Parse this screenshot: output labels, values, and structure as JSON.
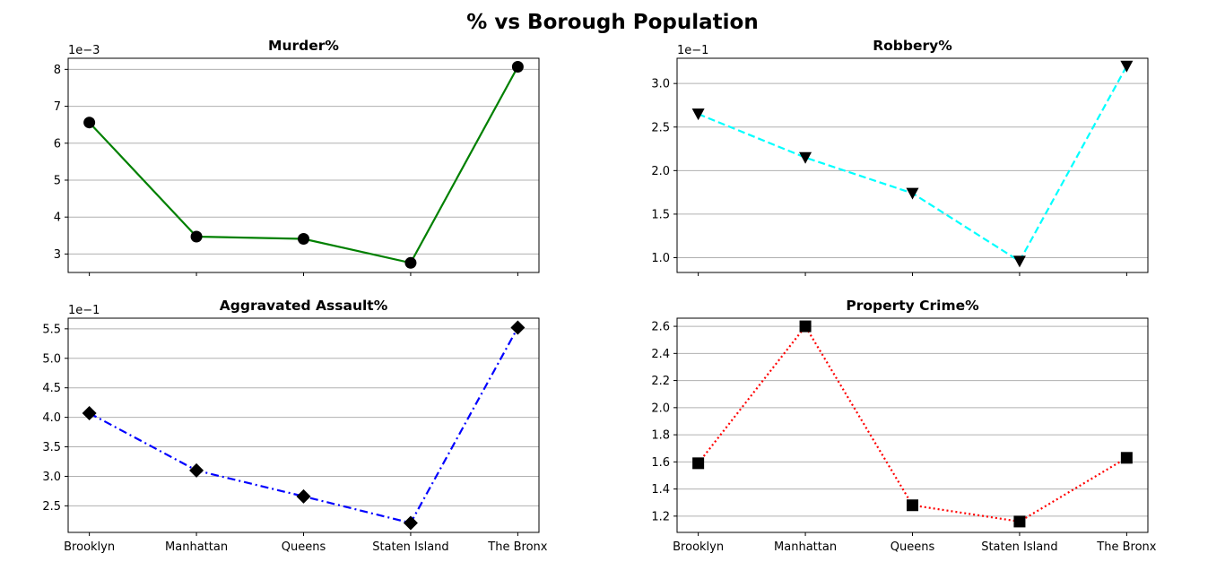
{
  "figure": {
    "title": "% vs Borough Population"
  },
  "chart_data": [
    {
      "type": "line",
      "title": "Murder%",
      "scale_label": "1e−3",
      "categories": [
        "Brooklyn",
        "Manhattan",
        "Queens",
        "Staten Island",
        "The Bronx"
      ],
      "values": [
        6.56,
        3.47,
        3.41,
        2.76,
        8.07
      ],
      "ylim": [
        2.5,
        8.3
      ],
      "yticks": [
        3,
        4,
        5,
        6,
        7,
        8
      ],
      "ytick_decimals": 0,
      "show_xlabels": false,
      "grid": "y",
      "color": "#008000",
      "line_style": "solid",
      "marker": "circle"
    },
    {
      "type": "line",
      "title": "Robbery%",
      "scale_label": "1e−1",
      "categories": [
        "Brooklyn",
        "Manhattan",
        "Queens",
        "Staten Island",
        "The Bronx"
      ],
      "values": [
        2.65,
        2.15,
        1.74,
        0.96,
        3.2
      ],
      "ylim": [
        0.83,
        3.29
      ],
      "yticks": [
        1.0,
        1.5,
        2.0,
        2.5,
        3.0
      ],
      "ytick_decimals": 1,
      "show_xlabels": false,
      "grid": "y",
      "color": "#00ffff",
      "line_style": "dashed",
      "marker": "triangle-down"
    },
    {
      "type": "line",
      "title": "Aggravated Assault%",
      "scale_label": "1e−1",
      "categories": [
        "Brooklyn",
        "Manhattan",
        "Queens",
        "Staten Island",
        "The Bronx"
      ],
      "values": [
        4.07,
        3.1,
        2.66,
        2.21,
        5.52
      ],
      "ylim": [
        2.05,
        5.68
      ],
      "yticks": [
        2.5,
        3.0,
        3.5,
        4.0,
        4.5,
        5.0,
        5.5
      ],
      "ytick_decimals": 1,
      "show_xlabels": true,
      "grid": "y",
      "color": "#0000ff",
      "line_style": "dashdot",
      "marker": "diamond"
    },
    {
      "type": "line",
      "title": "Property Crime%",
      "scale_label": "",
      "categories": [
        "Brooklyn",
        "Manhattan",
        "Queens",
        "Staten Island",
        "The Bronx"
      ],
      "values": [
        1.59,
        2.6,
        1.28,
        1.16,
        1.63
      ],
      "ylim": [
        1.08,
        2.66
      ],
      "yticks": [
        1.2,
        1.4,
        1.6,
        1.8,
        2.0,
        2.2,
        2.4,
        2.6
      ],
      "ytick_decimals": 1,
      "show_xlabels": true,
      "grid": "y",
      "color": "#ff0000",
      "line_style": "dotted",
      "marker": "square"
    }
  ]
}
